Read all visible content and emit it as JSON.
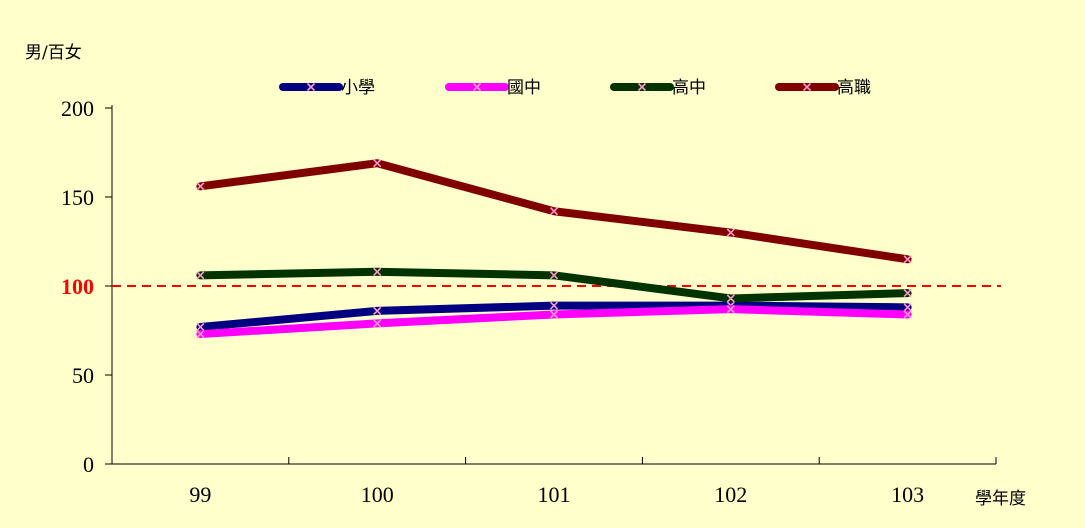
{
  "chart_data": {
    "type": "line",
    "title": "",
    "ylabel": "男/百女",
    "xlabel": "學年度",
    "x": [
      "99",
      "100",
      "101",
      "102",
      "103"
    ],
    "ylim": [
      0,
      200
    ],
    "yticks": [
      "0",
      "50",
      "100",
      "150",
      "200"
    ],
    "legend_position": "top",
    "reference_line": {
      "value": 100,
      "label": "100",
      "color": "#ff0000"
    },
    "series": [
      {
        "name": "小學",
        "color": "#000080",
        "values": [
          77,
          86,
          89,
          89,
          88
        ]
      },
      {
        "name": "國中",
        "color": "#ff00ff",
        "values": [
          73,
          79,
          84,
          87,
          84
        ]
      },
      {
        "name": "高中",
        "color": "#003300",
        "values": [
          106,
          108,
          106,
          93,
          96
        ]
      },
      {
        "name": "高職",
        "color": "#800000",
        "values": [
          156,
          169,
          142,
          130,
          115
        ]
      }
    ]
  }
}
